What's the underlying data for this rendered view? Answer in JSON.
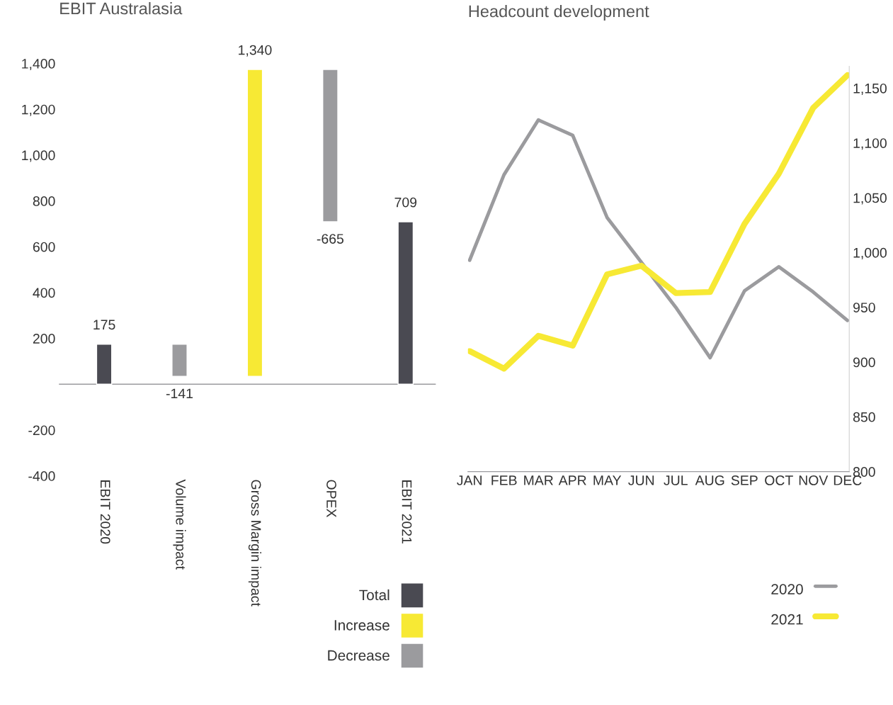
{
  "chart_data": [
    {
      "type": "bar",
      "title": "EBIT Australasia",
      "categories": [
        "EBIT 2020",
        "Volume impact",
        "Gross Margin impact",
        "OPEX",
        "EBIT 2021"
      ],
      "series": [
        {
          "name": "Total",
          "color": "#4a4a52",
          "values": [
            175,
            null,
            null,
            null,
            709
          ],
          "base": [
            0,
            null,
            null,
            null,
            0
          ],
          "value_labels": [
            "175",
            null,
            null,
            null,
            "709"
          ]
        },
        {
          "name": "Increase",
          "color": "#f7e934",
          "values": [
            null,
            null,
            1340,
            null,
            null
          ],
          "base": [
            null,
            null,
            34,
            null,
            null
          ],
          "value_labels": [
            null,
            null,
            "1,340",
            null,
            null
          ]
        },
        {
          "name": "Decrease",
          "color": "#9b9b9e",
          "values": [
            null,
            -141,
            null,
            -665,
            null
          ],
          "base": [
            null,
            175,
            null,
            1374,
            null
          ],
          "value_labels": [
            null,
            "-141",
            null,
            "-665",
            null
          ]
        }
      ],
      "ylim": [
        -400,
        1400
      ],
      "yticks": [
        {
          "value": -400,
          "label": "-400"
        },
        {
          "value": -200,
          "label": "-200"
        },
        200,
        400,
        600,
        800,
        {
          "value": 1000,
          "label": "1,000"
        },
        {
          "value": 1200,
          "label": "1,200"
        },
        {
          "value": 1400,
          "label": "1,400"
        }
      ],
      "ref_lines": [
        {
          "axis": "y",
          "value": 0,
          "color": "#9b9b9e"
        }
      ],
      "grid": false,
      "legend": "bottom right"
    },
    {
      "type": "line",
      "title": "Headcount development",
      "categories": [
        "JAN",
        "FEB",
        "MAR",
        "APR",
        "MAY",
        "JUN",
        "JUL",
        "AUG",
        "SEP",
        "OCT",
        "NOV",
        "DEC"
      ],
      "series": [
        {
          "name": "2020",
          "color": "#9b9b9e",
          "values": [
            993,
            1071,
            1121,
            1107,
            1032,
            991,
            950,
            904,
            965,
            987,
            964,
            938
          ]
        },
        {
          "name": "2021",
          "color": "#f7e934",
          "values": [
            910,
            894,
            924,
            915,
            980,
            988,
            963,
            964,
            1026,
            1072,
            1132,
            1162
          ]
        }
      ],
      "ylim": [
        800,
        1170
      ],
      "yticks": [
        800,
        850,
        900,
        950,
        {
          "value": 1000,
          "label": "1,000"
        },
        {
          "value": 1050,
          "label": "1,050"
        },
        {
          "value": 1100,
          "label": "1,100"
        },
        {
          "value": 1150,
          "label": "1,150"
        }
      ],
      "grid": false,
      "legend": "bottom right",
      "marker": "none",
      "line_style": "solid"
    }
  ]
}
